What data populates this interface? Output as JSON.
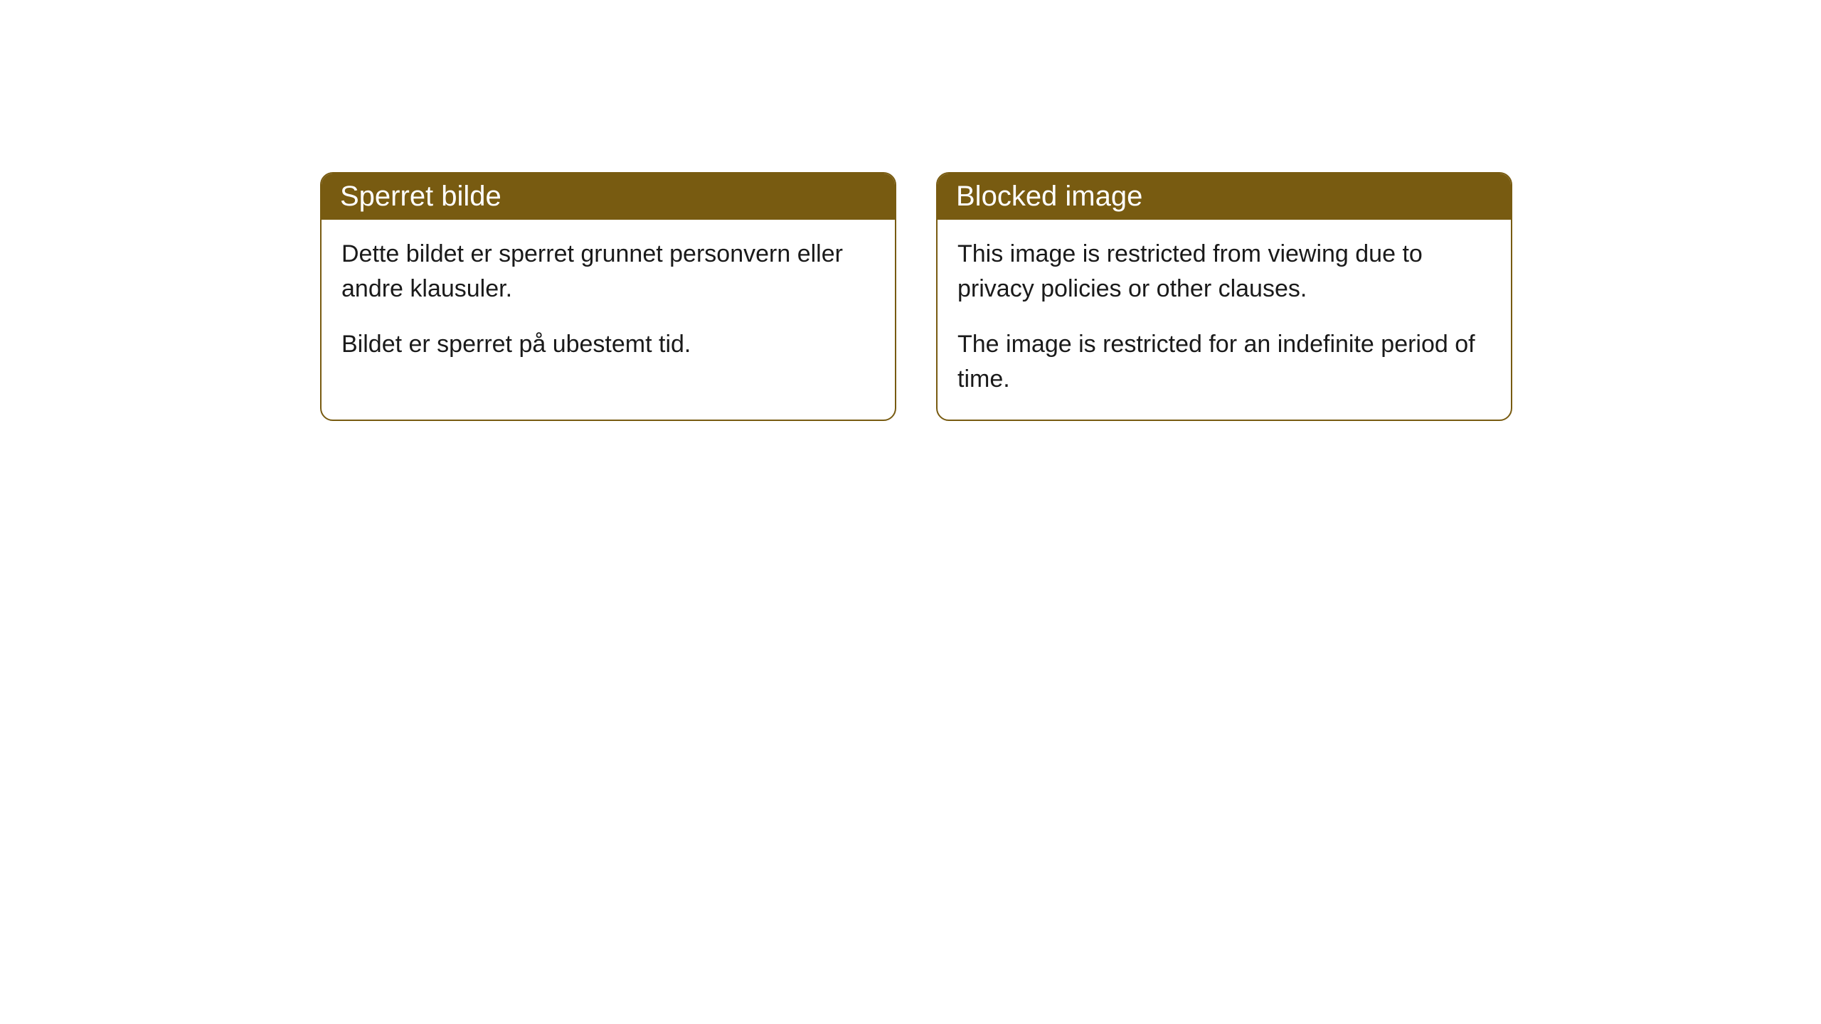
{
  "cards": [
    {
      "title": "Sperret bilde",
      "paragraph1": "Dette bildet er sperret grunnet personvern eller andre klausuler.",
      "paragraph2": "Bildet er sperret på ubestemt tid."
    },
    {
      "title": "Blocked image",
      "paragraph1": "This image is restricted from viewing due to privacy policies or other clauses.",
      "paragraph2": "The image is restricted for an indefinite period of time."
    }
  ],
  "colors": {
    "header_bg": "#785b11",
    "header_text": "#ffffff",
    "border": "#785b11",
    "body_bg": "#ffffff",
    "body_text": "#1a1a1a"
  }
}
